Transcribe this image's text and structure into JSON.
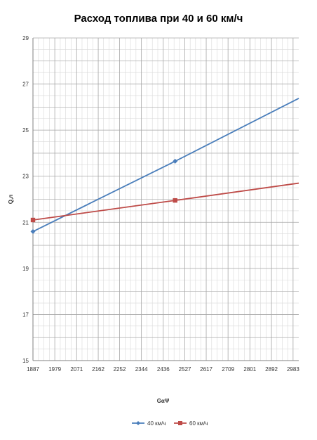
{
  "chart_data": {
    "type": "line",
    "title": "Расход топлива при 40 и 60 км/ч",
    "xlabel": "GαΨ",
    "ylabel": "Q,л",
    "xlim": [
      1887,
      3007
    ],
    "ylim": [
      15,
      29
    ],
    "x_ticks": [
      1887,
      1979,
      2071,
      2162,
      2252,
      2344,
      2436,
      2527,
      2617,
      2709,
      2801,
      2892,
      2983
    ],
    "y_ticks": [
      15,
      17,
      19,
      21,
      23,
      25,
      27,
      29
    ],
    "grid": true,
    "legend_position": "bottom",
    "series": [
      {
        "name": "40 км/ч",
        "color": "#4a7ebb",
        "marker": "diamond",
        "x": [
          1887,
          2486,
          3007
        ],
        "y": [
          20.6,
          23.65,
          26.38
        ],
        "marker_indices": [
          0,
          1
        ]
      },
      {
        "name": "60 км/ч",
        "color": "#be4b48",
        "marker": "square",
        "x": [
          1887,
          2486,
          3007
        ],
        "y": [
          21.1,
          21.95,
          22.7
        ],
        "marker_indices": [
          0,
          1
        ]
      }
    ]
  }
}
